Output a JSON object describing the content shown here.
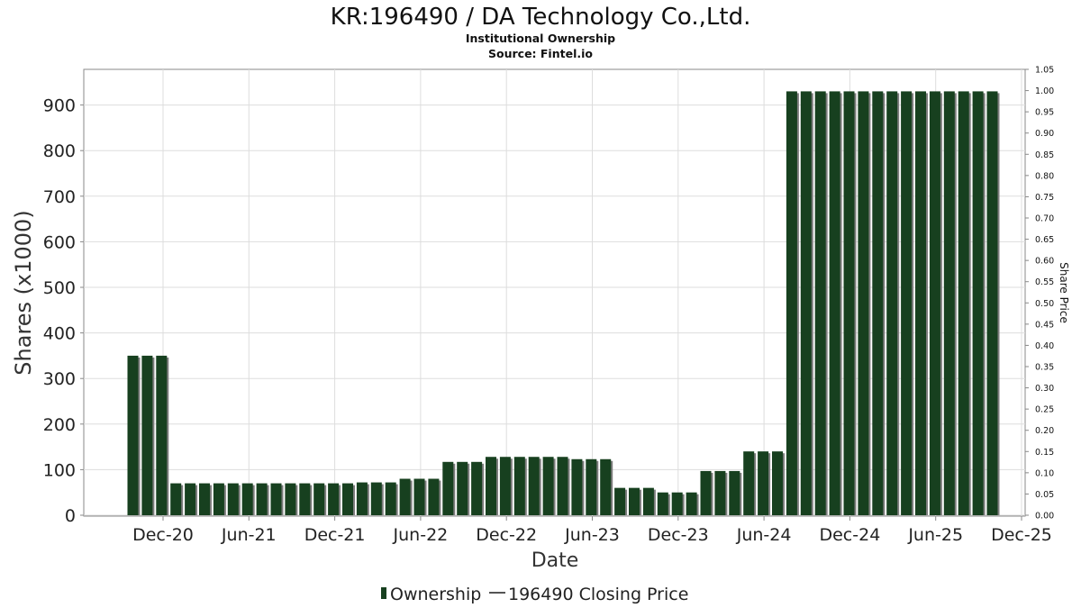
{
  "header": {
    "title": "KR:196490 / DA Technology Co.,Ltd.",
    "subtitle": "Institutional Ownership",
    "source": "Source: Fintel.io"
  },
  "legend": {
    "ownership_label": "Ownership",
    "price_label": "196490 Closing Price"
  },
  "colors": {
    "bar": "#17401f",
    "bar_shadow": "#7d7d7d",
    "grid": "#dddddd",
    "axis": "#888888",
    "price_line": "#555555"
  },
  "chart_data": {
    "type": "bar",
    "title": "KR:196490 / DA Technology Co.,Ltd.",
    "xlabel": "Date",
    "ylabel": "Shares (x1000)",
    "y2label": "Share Price",
    "ylim": [
      0,
      970
    ],
    "y2lim": [
      0,
      1.05
    ],
    "yticks": [
      0,
      100,
      200,
      300,
      400,
      500,
      600,
      700,
      800,
      900
    ],
    "y2ticks": [
      "0.00",
      "0.05",
      "0.10",
      "0.15",
      "0.20",
      "0.25",
      "0.30",
      "0.35",
      "0.40",
      "0.45",
      "0.50",
      "0.55",
      "0.60",
      "0.65",
      "0.70",
      "0.75",
      "0.80",
      "0.85",
      "0.90",
      "0.95",
      "1.00",
      "1.05"
    ],
    "xticks": [
      "Dec-20",
      "Jun-21",
      "Dec-21",
      "Jun-22",
      "Dec-22",
      "Jun-23",
      "Dec-23",
      "Jun-24",
      "Dec-24",
      "Jun-25",
      "Dec-25"
    ],
    "grid": true,
    "legend_position": "bottom",
    "series": [
      {
        "name": "Ownership",
        "values": [
          350,
          350,
          350,
          70,
          70,
          70,
          70,
          70,
          70,
          70,
          70,
          70,
          70,
          70,
          70,
          70,
          72,
          72,
          72,
          80,
          80,
          80,
          117,
          117,
          117,
          128,
          128,
          128,
          128,
          128,
          128,
          123,
          123,
          123,
          60,
          60,
          60,
          50,
          50,
          50,
          97,
          97,
          97,
          140,
          140,
          140,
          930,
          930,
          930,
          930,
          930,
          930,
          930,
          930,
          930,
          930,
          930,
          930,
          930,
          930,
          930
        ]
      },
      {
        "name": "196490 Closing Price",
        "values": []
      }
    ]
  }
}
